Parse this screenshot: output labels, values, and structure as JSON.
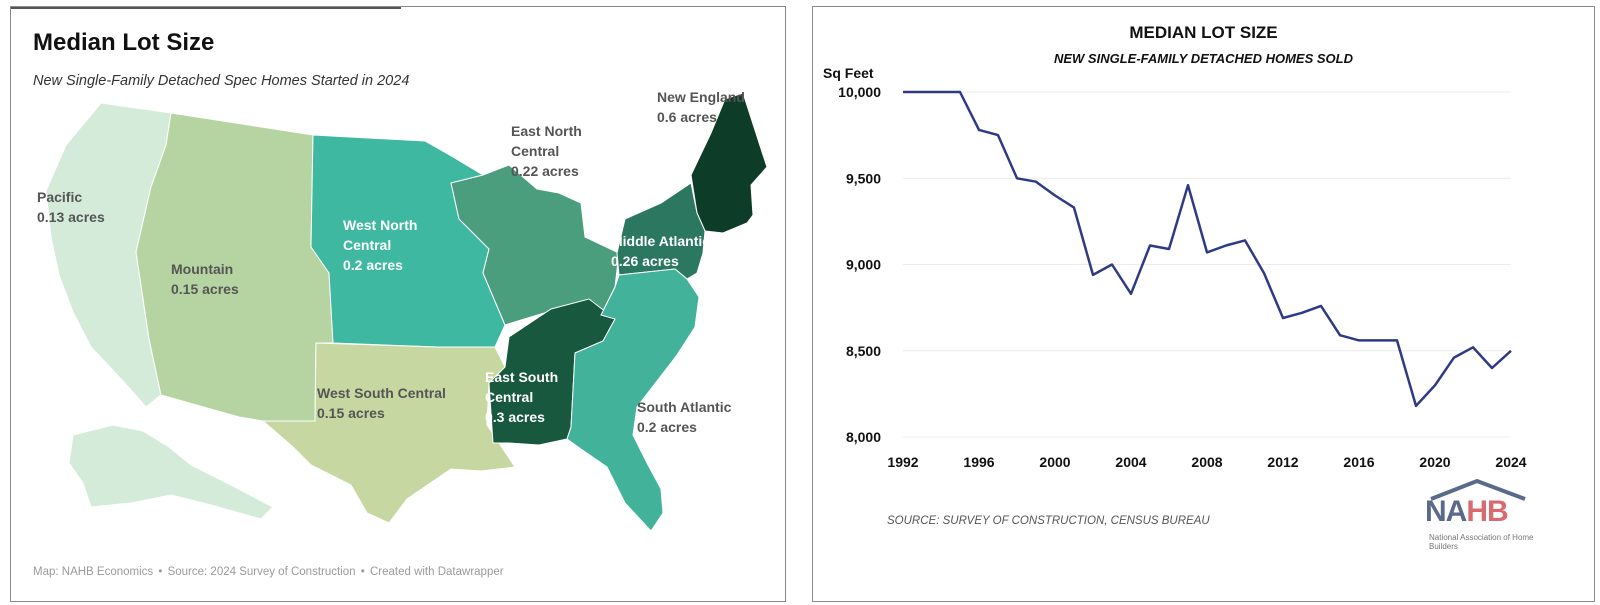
{
  "left": {
    "title": "Median Lot Size",
    "subtitle": "New Single-Family Detached Spec Homes Started in 2024",
    "footer": [
      "Map: NAHB Economics",
      "Source: 2024 Survey of Construction",
      "Created with Datawrapper"
    ],
    "footer_sep": "•",
    "regions": [
      {
        "key": "pacific",
        "name": "Pacific",
        "value": "0.13 acres",
        "acres": 0.13,
        "color": "#d5ebd9"
      },
      {
        "key": "mountain",
        "name": "Mountain",
        "value": "0.15 acres",
        "acres": 0.15,
        "color": "#b6d4a1"
      },
      {
        "key": "west-north-central",
        "name": "West North Central",
        "value": "0.2 acres",
        "acres": 0.2,
        "color": "#3eb8a0"
      },
      {
        "key": "east-north-central",
        "name": "East North Central",
        "value": "0.22 acres",
        "acres": 0.22,
        "color": "#4a9e7e"
      },
      {
        "key": "new-england",
        "name": "New England",
        "value": "0.6 acres",
        "acres": 0.6,
        "color": "#0d3d28"
      },
      {
        "key": "middle-atlantic",
        "name": "Middle Atlantic",
        "value": "0.26 acres",
        "acres": 0.26,
        "color": "#2c7760"
      },
      {
        "key": "west-south-central",
        "name": "West South Central",
        "value": "0.15 acres",
        "acres": 0.15,
        "color": "#c7d7a1"
      },
      {
        "key": "east-south-central",
        "name": "East South Central",
        "value": "0.3 acres",
        "acres": 0.3,
        "color": "#17583e"
      },
      {
        "key": "south-atlantic",
        "name": "South Atlantic",
        "value": "0.2 acres",
        "acres": 0.2,
        "color": "#43b29a"
      }
    ]
  },
  "right": {
    "y_unit": "Sq Feet",
    "source": "SOURCE: SURVEY OF CONSTRUCTION, CENSUS BUREAU",
    "logo": {
      "word_n": "NA",
      "word_h": "HB",
      "tagline": "National Association of Home Builders"
    },
    "line_color": "#2f3a85"
  },
  "chart_data": {
    "type": "line",
    "title": "MEDIAN LOT SIZE",
    "subtitle": "NEW SINGLE-FAMILY DETACHED HOMES SOLD",
    "ylabel": "Sq Feet",
    "xlabel": "",
    "ylim": [
      8000,
      10000
    ],
    "yticks": [
      8000,
      8500,
      9000,
      9500,
      10000
    ],
    "ytick_labels": [
      "8,000",
      "8,500",
      "9,000",
      "9,500",
      "10,000"
    ],
    "xlim": [
      1992,
      2024
    ],
    "xticks": [
      1992,
      1996,
      2000,
      2004,
      2008,
      2012,
      2016,
      2020,
      2024
    ],
    "xtick_labels": [
      "1992",
      "1996",
      "2000",
      "2004",
      "2008",
      "2012",
      "2016",
      "2020",
      "2024"
    ],
    "grid": true,
    "x": [
      1992,
      1993,
      1994,
      1995,
      1996,
      1997,
      1998,
      1999,
      2000,
      2001,
      2002,
      2003,
      2004,
      2005,
      2006,
      2007,
      2008,
      2009,
      2010,
      2011,
      2012,
      2013,
      2014,
      2015,
      2016,
      2017,
      2018,
      2019,
      2020,
      2021,
      2022,
      2023,
      2024
    ],
    "values": [
      10000,
      10000,
      10000,
      10000,
      9780,
      9750,
      9500,
      9480,
      9400,
      9330,
      8940,
      9000,
      8830,
      9110,
      9090,
      9460,
      9070,
      9110,
      9140,
      8950,
      8690,
      8720,
      8760,
      8590,
      8560,
      8560,
      8560,
      8180,
      8300,
      8460,
      8520,
      8400,
      8500
    ]
  }
}
